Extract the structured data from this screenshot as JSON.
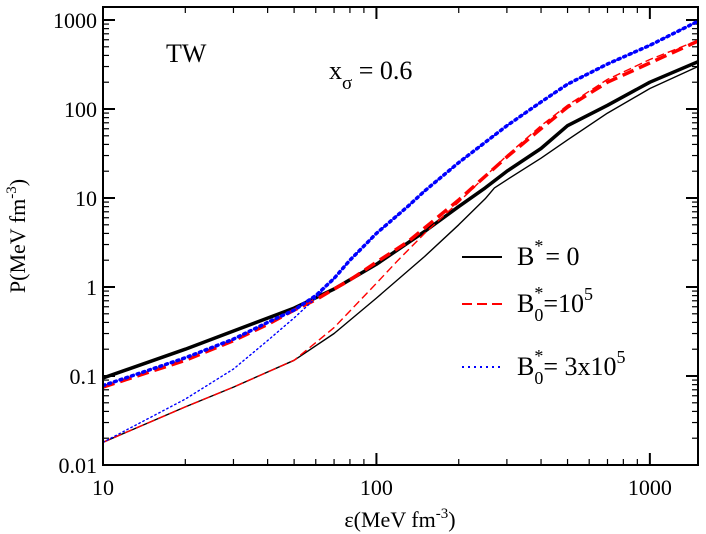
{
  "chart_data": {
    "type": "line",
    "title": "",
    "xscale": "log",
    "yscale": "log",
    "xlim": [
      10,
      1500
    ],
    "ylim": [
      0.01,
      1400
    ],
    "x_ticks": [
      10,
      100,
      1000
    ],
    "x_tick_labels": [
      "10",
      "100",
      "1000"
    ],
    "y_ticks": [
      0.01,
      0.1,
      1,
      10,
      100,
      1000
    ],
    "y_tick_labels": [
      "0.01",
      "0.1",
      "1",
      "10",
      "100",
      "1000"
    ],
    "xlabel": {
      "main": "ε(MeV fm",
      "sup": "-3",
      "close": ")"
    },
    "ylabel": {
      "main": "P(MeV fm",
      "sup": "-3",
      "close": ")"
    },
    "annotations": {
      "model": "TW",
      "param_main": "x",
      "param_sub": "σ",
      "param_rest": " = 0.6"
    },
    "legend": {
      "position": "center-right",
      "entries": [
        {
          "series": "B0",
          "main": "B",
          "sup": "*",
          "sub": "",
          "rest": "= 0",
          "rest_sup": ""
        },
        {
          "series": "B1e5",
          "main": "B",
          "sup": "*",
          "sub": "0",
          "rest": "=10",
          "rest_sup": "5"
        },
        {
          "series": "B3e5",
          "main": "B",
          "sup": "*",
          "sub": "0",
          "rest": "= 3x10",
          "rest_sup": "5"
        }
      ]
    },
    "series": [
      {
        "id": "B0-thick",
        "name": "B* = 0",
        "color": "#000000",
        "style": "solid",
        "width": "thick",
        "x": [
          10,
          20,
          30,
          50,
          70,
          100,
          150,
          200,
          250,
          300,
          400,
          500,
          700,
          1000,
          1500
        ],
        "y": [
          0.095,
          0.2,
          0.32,
          0.58,
          0.95,
          1.8,
          4.2,
          8.0,
          13.0,
          20,
          36,
          65,
          110,
          200,
          340
        ]
      },
      {
        "id": "B0-thin",
        "name": "B* = 0",
        "color": "#000000",
        "style": "solid",
        "width": "thin",
        "x": [
          10,
          20,
          30,
          50,
          70,
          100,
          150,
          200,
          250,
          270,
          300,
          400,
          500,
          700,
          1000,
          1500
        ],
        "y": [
          0.018,
          0.045,
          0.075,
          0.15,
          0.3,
          0.75,
          2.2,
          5.0,
          9.8,
          13.0,
          16.0,
          28,
          45,
          90,
          170,
          300
        ]
      },
      {
        "id": "B1e5-thick",
        "name": "B0* = 10^5",
        "color": "#ff0000",
        "style": "dashed",
        "width": "thick",
        "x": [
          10,
          20,
          30,
          40,
          50,
          60,
          70,
          80,
          100,
          130,
          150,
          200,
          300,
          400,
          500,
          700,
          1000,
          1500
        ],
        "y": [
          0.075,
          0.15,
          0.25,
          0.38,
          0.55,
          0.72,
          0.95,
          1.2,
          1.9,
          3.2,
          4.6,
          9.5,
          29,
          60,
          105,
          200,
          330,
          580
        ]
      },
      {
        "id": "B1e5-thin",
        "name": "B0* = 10^5",
        "color": "#ff0000",
        "style": "dashed",
        "width": "thin",
        "x": [
          10,
          20,
          30,
          50,
          70,
          100,
          120,
          150,
          200,
          300,
          400,
          500,
          700,
          1000,
          1500
        ],
        "y": [
          0.018,
          0.045,
          0.075,
          0.15,
          0.35,
          1.1,
          2.0,
          4.0,
          9.0,
          30,
          65,
          110,
          215,
          360,
          590
        ]
      },
      {
        "id": "B3e5-thick",
        "name": "B0* = 3x10^5",
        "color": "#0000ff",
        "style": "dotted",
        "width": "thick",
        "x": [
          10,
          20,
          30,
          40,
          50,
          60,
          70,
          80,
          100,
          130,
          150,
          200,
          300,
          400,
          500,
          700,
          1000,
          1500
        ],
        "y": [
          0.078,
          0.16,
          0.26,
          0.4,
          0.55,
          0.8,
          1.25,
          2.0,
          4.0,
          8.0,
          12,
          25,
          65,
          120,
          190,
          320,
          520,
          970
        ]
      },
      {
        "id": "B3e5-thin",
        "name": "B0* = 3x10^5",
        "color": "#0000ff",
        "style": "dotted",
        "width": "thin",
        "x": [
          10,
          20,
          30,
          40,
          50,
          60,
          70,
          80,
          100,
          130,
          150,
          200,
          300,
          400,
          500,
          700,
          1000,
          1500
        ],
        "y": [
          0.018,
          0.055,
          0.12,
          0.25,
          0.45,
          0.75,
          1.25,
          2.0,
          4.0,
          8.0,
          12,
          25,
          65,
          120,
          190,
          320,
          520,
          970
        ]
      }
    ]
  }
}
